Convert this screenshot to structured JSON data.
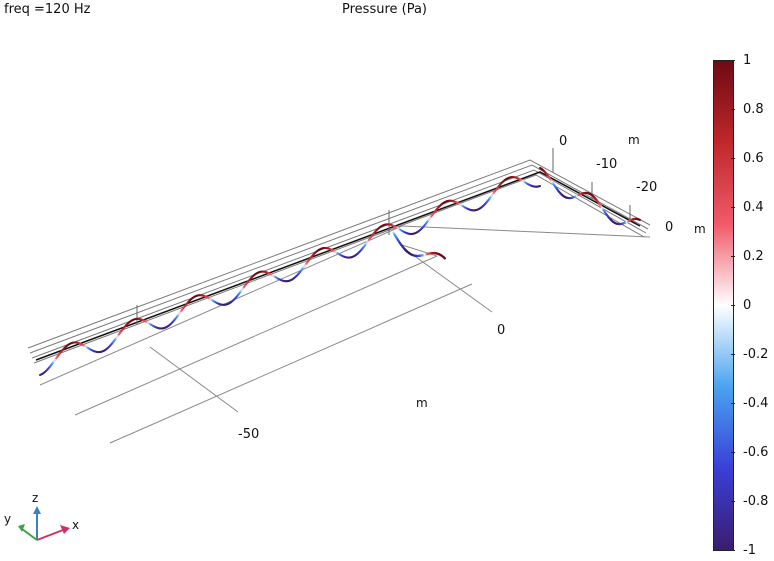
{
  "header": {
    "freq_label": "freq =120 Hz",
    "plot_title": "Pressure (Pa)"
  },
  "axes": {
    "x_ticks": [
      "-50",
      "0"
    ],
    "x_unit": "m",
    "y_ticks": [
      "0",
      "-10",
      "-20"
    ],
    "y_unit": "m",
    "z_ticks": [
      "0"
    ],
    "z_unit": "m"
  },
  "triad": {
    "x": "x",
    "y": "y",
    "z": "z"
  },
  "colorbar": {
    "ticks": [
      "1",
      "0.8",
      "0.6",
      "0.4",
      "0.2",
      "0",
      "-0.2",
      "-0.4",
      "-0.6",
      "-0.8",
      "-1"
    ],
    "colors": [
      "#3b1d6e",
      "#3a3fd8",
      "#4aa3f0",
      "#ffffff",
      "#f05a6a",
      "#c0282b",
      "#6e0a14"
    ]
  }
}
